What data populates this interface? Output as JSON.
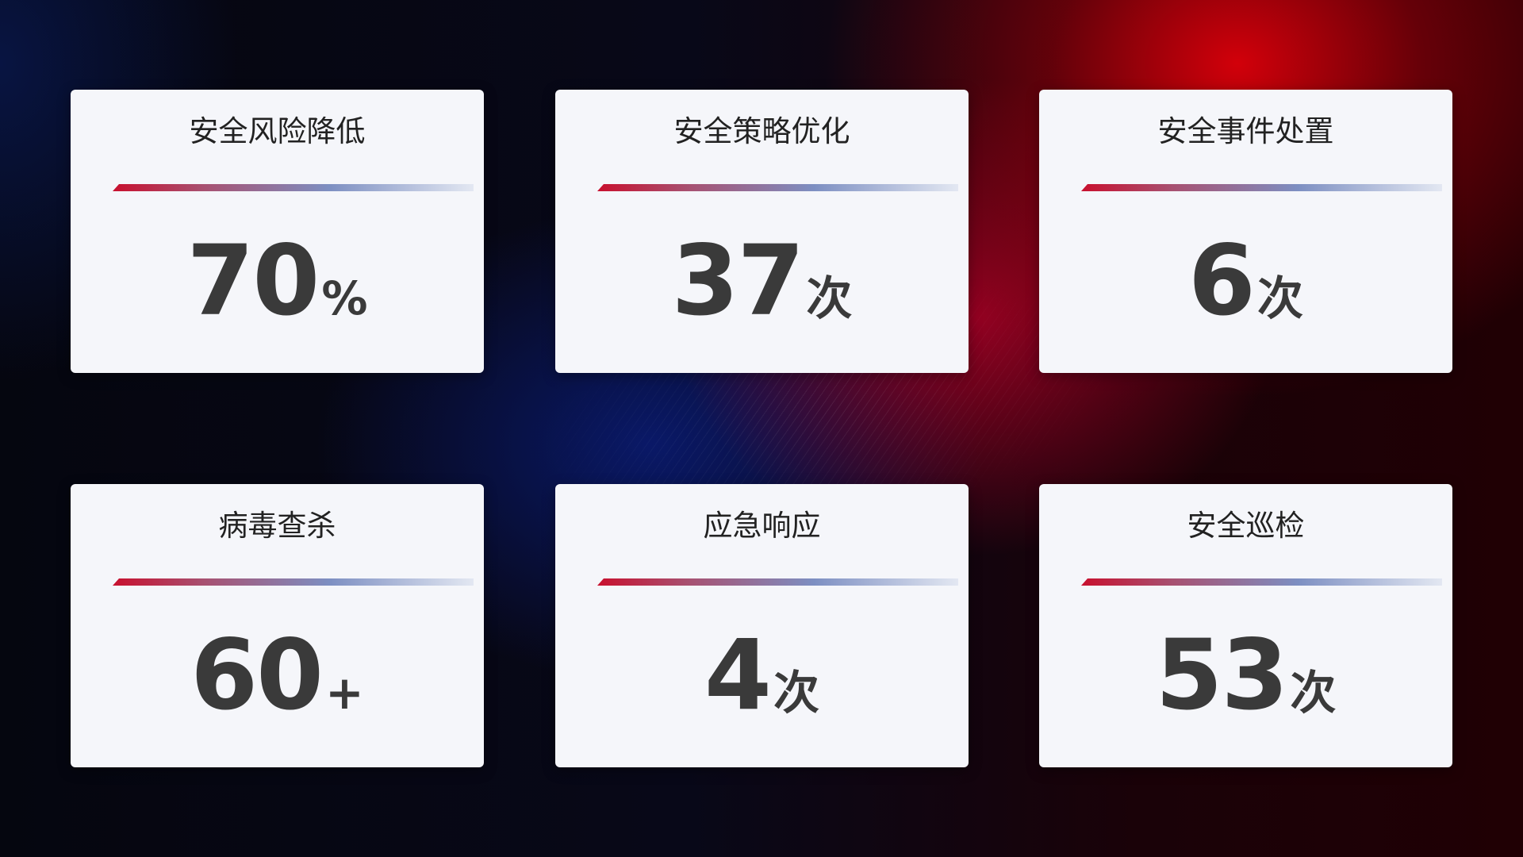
{
  "cards": [
    {
      "title": "安全风险降低",
      "value": 70,
      "unit": "%"
    },
    {
      "title": "安全策略优化",
      "value": 37,
      "unit": "次"
    },
    {
      "title": "安全事件处置",
      "value": 6,
      "unit": "次"
    },
    {
      "title": "病毒查杀",
      "value": 60,
      "unit": "+"
    },
    {
      "title": "应急响应",
      "value": 4,
      "unit": "次"
    },
    {
      "title": "安全巡检",
      "value": 53,
      "unit": "次"
    }
  ]
}
